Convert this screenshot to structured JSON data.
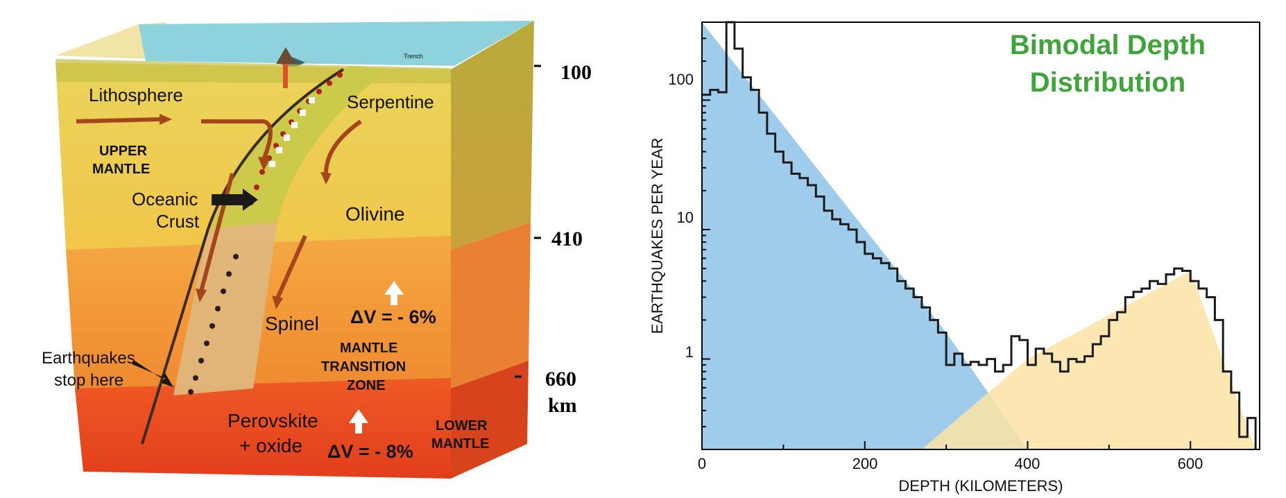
{
  "diagram": {
    "layers": {
      "lithosphere": "Lithosphere",
      "upper_mantle_1": "UPPER",
      "upper_mantle_2": "MANTLE",
      "oceanic_crust_1": "Oceanic",
      "oceanic_crust_2": "Crust",
      "serpentine": "Serpentine",
      "olivine": "Olivine",
      "trench": "Trench",
      "spinel": "Spinel",
      "transition_1": "MANTLE",
      "transition_2": "TRANSITION",
      "transition_3": "ZONE",
      "earthquakes_1": "Earthquakes",
      "earthquakes_2": "stop here",
      "perovskite_1": "Perovskite",
      "perovskite_2": "+ oxide",
      "lower_mantle_1": "LOWER",
      "lower_mantle_2": "MANTLE",
      "dv_410": "ΔV = - 6%",
      "dv_660": "ΔV = - 8%"
    },
    "depth_labels": {
      "d100": "100",
      "d410": "410",
      "d660": "660",
      "unit": "km"
    }
  },
  "chart_data": {
    "type": "histogram",
    "title_line1": "Bimodal Depth",
    "title_line2": "Distribution",
    "xlabel": "DEPTH (KILOMETERS)",
    "ylabel": "EARTHQUAKES PER YEAR",
    "x_ticks": [
      "0",
      "200",
      "400",
      "600"
    ],
    "y_ticks": [
      "1",
      "10",
      "100"
    ],
    "y_scale": "log",
    "xlim": [
      0,
      685
    ],
    "ylim": [
      0.2,
      400
    ],
    "bin_width": 10,
    "bin_starts": [
      0,
      10,
      20,
      30,
      40,
      50,
      60,
      70,
      80,
      90,
      100,
      110,
      120,
      130,
      140,
      150,
      160,
      170,
      180,
      190,
      200,
      210,
      220,
      230,
      240,
      250,
      260,
      270,
      280,
      290,
      300,
      310,
      320,
      330,
      340,
      350,
      360,
      370,
      380,
      390,
      400,
      410,
      420,
      430,
      440,
      450,
      460,
      470,
      480,
      490,
      500,
      510,
      520,
      530,
      540,
      550,
      560,
      570,
      580,
      590,
      600,
      610,
      620,
      630,
      640,
      650,
      660,
      670
    ],
    "values": [
      110,
      120,
      115,
      400,
      250,
      150,
      120,
      80,
      55,
      40,
      33,
      27,
      25,
      22,
      18,
      14,
      12,
      11,
      10,
      8,
      6.5,
      6,
      5.5,
      5,
      4,
      3.5,
      3,
      2.5,
      2,
      1.6,
      0.9,
      1.1,
      0.9,
      0.95,
      0.9,
      1,
      0.8,
      0.9,
      1.5,
      1.4,
      0.9,
      1.2,
      1.1,
      0.95,
      0.8,
      1,
      0.95,
      1.05,
      1.3,
      1.5,
      2,
      2.3,
      3,
      3.3,
      3.5,
      4,
      3.8,
      4.5,
      5,
      4.8,
      4,
      3.5,
      3,
      2,
      0.8,
      0.55,
      0.25,
      0.35
    ],
    "components": [
      {
        "name": "shallow",
        "color": "#8fc3e8",
        "points": [
          [
            0,
            400
          ],
          [
            300,
            1.6
          ],
          [
            400,
            0.2
          ],
          [
            0,
            0.2
          ]
        ]
      },
      {
        "name": "deep",
        "color": "#fbe3a4",
        "points": [
          [
            270,
            0.2
          ],
          [
            400,
            1.0
          ],
          [
            600,
            4.8
          ],
          [
            680,
            0.2
          ]
        ]
      }
    ]
  }
}
